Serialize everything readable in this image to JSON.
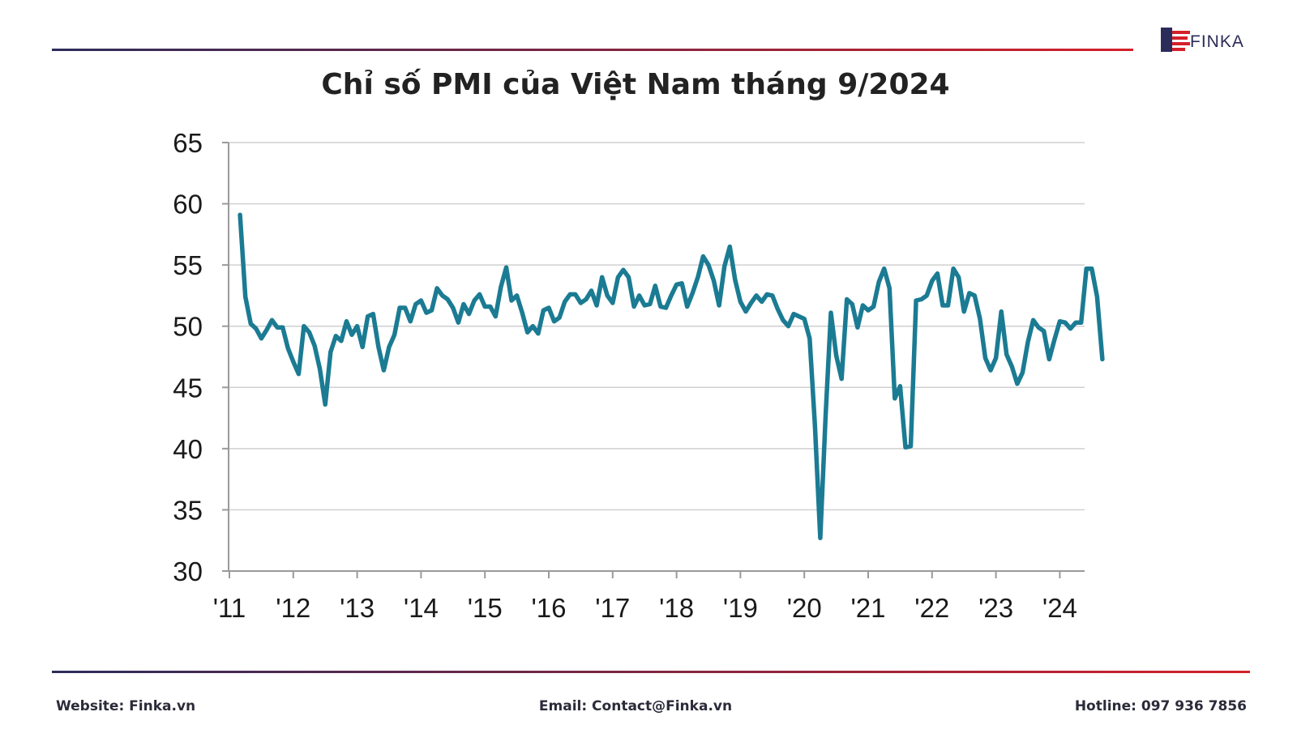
{
  "brand": {
    "name": "FINKA",
    "colors": {
      "navy": "#2c2c5a",
      "red": "#d4202a",
      "line": "#1b7b93"
    }
  },
  "footer": {
    "website": "Website: Finka.vn",
    "email": "Email: Contact@Finka.vn",
    "hotline": "Hotline: 097 936 7856"
  },
  "chart_data": {
    "type": "line",
    "title": "Chỉ số PMI của Việt Nam tháng 9/2024",
    "xlabel": "",
    "ylabel": "",
    "ylim": [
      30,
      65
    ],
    "yticks": [
      65,
      60,
      55,
      50,
      45,
      40,
      35,
      30
    ],
    "xticks": [
      "'11",
      "'12",
      "'13",
      "'14",
      "'15",
      "'16",
      "'17",
      "'18",
      "'19",
      "'20",
      "'21",
      "'22",
      "'23",
      "'24"
    ],
    "grid": true,
    "legend": "none",
    "start": "2011-03",
    "series": [
      {
        "values": [
          59.1,
          52.4,
          50.2,
          49.8,
          49.0,
          49.7,
          50.5,
          49.9,
          49.9,
          48.2,
          47.1,
          46.1,
          50.0,
          49.5,
          48.4,
          46.5,
          43.6,
          47.9,
          49.2,
          48.8,
          50.4,
          49.3,
          50.0,
          48.3,
          50.8,
          51.0,
          48.3,
          46.4,
          48.3,
          49.3,
          51.5,
          51.5,
          50.4,
          51.8,
          52.1,
          51.1,
          51.3,
          53.1,
          52.5,
          52.2,
          51.5,
          50.3,
          51.8,
          51.0,
          52.1,
          52.6,
          51.6,
          51.6,
          50.8,
          53.2,
          54.8,
          52.1,
          52.5,
          51.1,
          49.5,
          50.0,
          49.4,
          51.3,
          51.5,
          50.4,
          50.7,
          52.0,
          52.6,
          52.6,
          51.9,
          52.2,
          52.9,
          51.7,
          54.0,
          52.5,
          51.9,
          54.0,
          54.6,
          54.0,
          51.6,
          52.5,
          51.7,
          51.8,
          53.3,
          51.6,
          51.5,
          52.5,
          53.4,
          53.5,
          51.6,
          52.7,
          54.0,
          55.7,
          55.0,
          53.7,
          51.7,
          54.9,
          56.5,
          53.8,
          52.0,
          51.2,
          51.9,
          52.5,
          52.0,
          52.6,
          52.5,
          51.4,
          50.5,
          50.0,
          51.0,
          50.8,
          50.6,
          49.0,
          41.9,
          32.7,
          42.7,
          51.1,
          47.6,
          45.7,
          52.2,
          51.8,
          49.9,
          51.7,
          51.3,
          51.6,
          53.6,
          54.7,
          53.1,
          44.1,
          45.1,
          40.1,
          40.2,
          52.1,
          52.2,
          52.5,
          53.7,
          54.3,
          51.7,
          51.7,
          54.7,
          54.0,
          51.2,
          52.7,
          52.5,
          50.6,
          47.4,
          46.4,
          47.4,
          51.2,
          47.7,
          46.7,
          45.3,
          46.2,
          48.7,
          50.5,
          49.9,
          49.6,
          47.3,
          48.9,
          50.4,
          50.3,
          49.8,
          50.3,
          50.3,
          54.7,
          54.7,
          52.4,
          47.3
        ]
      }
    ]
  }
}
